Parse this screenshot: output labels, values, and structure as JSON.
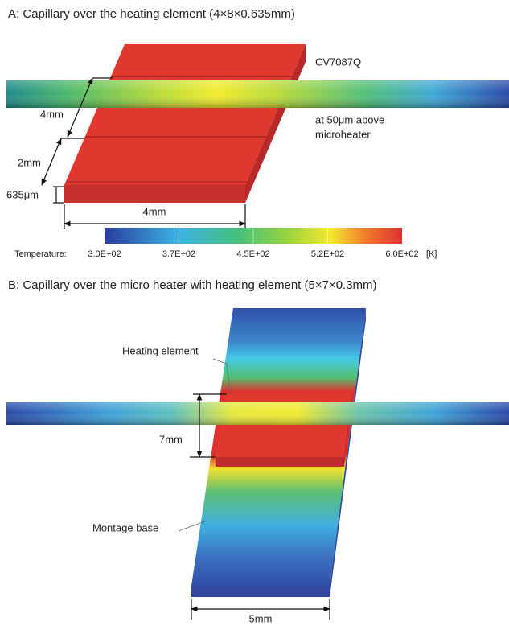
{
  "panel_a": {
    "title": "A: Capillary over the heating element (4×8×0.635mm)",
    "device": "CV7087Q",
    "note": [
      "at 50μm above",
      "microheater"
    ],
    "length": "4mm",
    "gap": "2mm",
    "thickness": "635μm",
    "width": "4mm"
  },
  "colorbar": {
    "label": "Temperature:",
    "ticks": [
      "3.0E+02",
      "3.7E+02",
      "4.5E+02",
      "5.2E+02",
      "6.0E+02"
    ],
    "unit": "[K]"
  },
  "panel_b": {
    "title": "B: Capillary over the micro heater with heating element (5×7×0.3mm)",
    "heating_element": "Heating element",
    "montage_base": "Montage base",
    "length": "7mm",
    "width": "5mm"
  }
}
